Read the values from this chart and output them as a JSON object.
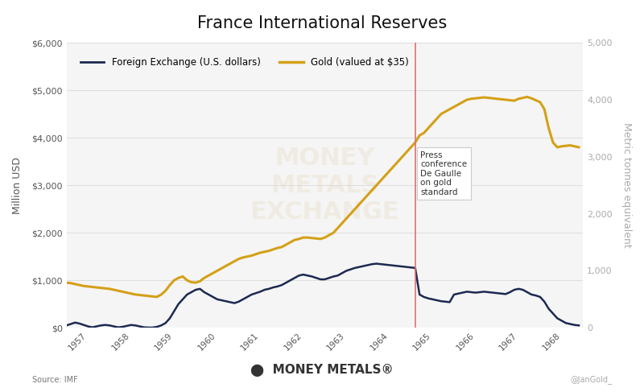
{
  "title": "France International Reserves",
  "legend_fx": "Foreign Exchange (U.S. dollars)",
  "legend_gold": "Gold (valued at $35)",
  "ylabel_left": "Million USD",
  "ylabel_right": "Metric tonnes equivalent",
  "source": "Source: IMF",
  "watermark": "@JanGold_",
  "annotation_text": "Press\nconference\nDe Gaulle\non gold\nstandard",
  "vline_x": 1965.1,
  "background_color": "#ffffff",
  "plot_bg_color": "#f5f5f5",
  "fx_color": "#1c2951",
  "gold_color": "#d4a017",
  "vline_color": "#e07070",
  "ylim_left": [
    0,
    6000
  ],
  "ylim_right": [
    0,
    5000
  ],
  "yticks_left": [
    0,
    1000,
    2000,
    3000,
    4000,
    5000,
    6000
  ],
  "yticks_right": [
    0,
    1000,
    2000,
    3000,
    4000,
    5000
  ],
  "fx_data": {
    "x": [
      1957.0,
      1957.1,
      1957.2,
      1957.3,
      1957.4,
      1957.5,
      1957.6,
      1957.7,
      1957.8,
      1957.9,
      1958.0,
      1958.1,
      1958.2,
      1958.3,
      1958.4,
      1958.5,
      1958.6,
      1958.7,
      1958.8,
      1958.9,
      1959.0,
      1959.1,
      1959.2,
      1959.3,
      1959.4,
      1959.5,
      1959.6,
      1959.7,
      1959.8,
      1959.9,
      1960.0,
      1960.1,
      1960.2,
      1960.3,
      1960.4,
      1960.5,
      1960.6,
      1960.7,
      1960.8,
      1960.9,
      1961.0,
      1961.1,
      1961.2,
      1961.3,
      1961.4,
      1961.5,
      1961.6,
      1961.7,
      1961.8,
      1961.9,
      1962.0,
      1962.1,
      1962.2,
      1962.3,
      1962.4,
      1962.5,
      1962.6,
      1962.7,
      1962.8,
      1962.9,
      1963.0,
      1963.1,
      1963.2,
      1963.3,
      1963.4,
      1963.5,
      1963.6,
      1963.7,
      1963.8,
      1963.9,
      1964.0,
      1964.1,
      1964.2,
      1964.3,
      1964.4,
      1964.5,
      1964.6,
      1964.7,
      1964.8,
      1964.9,
      1965.0,
      1965.1,
      1965.2,
      1965.3,
      1965.4,
      1965.5,
      1965.6,
      1965.7,
      1965.8,
      1965.9,
      1966.0,
      1966.1,
      1966.2,
      1966.3,
      1966.4,
      1966.5,
      1966.6,
      1966.7,
      1966.8,
      1966.9,
      1967.0,
      1967.1,
      1967.2,
      1967.3,
      1967.4,
      1967.5,
      1967.6,
      1967.7,
      1967.8,
      1967.9,
      1968.0,
      1968.1,
      1968.2,
      1968.3,
      1968.4,
      1968.5,
      1968.6,
      1968.7,
      1968.8,
      1968.9
    ],
    "y": [
      50,
      80,
      110,
      90,
      60,
      30,
      10,
      30,
      50,
      60,
      50,
      30,
      10,
      20,
      40,
      60,
      50,
      30,
      10,
      5,
      5,
      20,
      50,
      100,
      200,
      350,
      500,
      600,
      700,
      750,
      800,
      820,
      750,
      700,
      650,
      600,
      580,
      560,
      540,
      520,
      550,
      600,
      650,
      700,
      730,
      760,
      800,
      820,
      850,
      870,
      900,
      950,
      1000,
      1050,
      1100,
      1120,
      1100,
      1080,
      1050,
      1020,
      1020,
      1050,
      1080,
      1100,
      1150,
      1200,
      1230,
      1260,
      1280,
      1300,
      1320,
      1340,
      1350,
      1340,
      1330,
      1320,
      1310,
      1300,
      1290,
      1280,
      1270,
      1260,
      700,
      650,
      620,
      600,
      580,
      560,
      550,
      540,
      700,
      720,
      740,
      760,
      750,
      740,
      750,
      760,
      750,
      740,
      730,
      720,
      710,
      750,
      800,
      820,
      800,
      750,
      700,
      680,
      650,
      550,
      400,
      300,
      200,
      150,
      100,
      80,
      60,
      50
    ]
  },
  "gold_data": {
    "x": [
      1957.0,
      1957.1,
      1957.2,
      1957.3,
      1957.4,
      1957.5,
      1957.6,
      1957.7,
      1957.8,
      1957.9,
      1958.0,
      1958.1,
      1958.2,
      1958.3,
      1958.4,
      1958.5,
      1958.6,
      1958.7,
      1958.8,
      1958.9,
      1959.0,
      1959.1,
      1959.2,
      1959.3,
      1959.4,
      1959.5,
      1959.6,
      1959.7,
      1959.8,
      1959.9,
      1960.0,
      1960.1,
      1960.2,
      1960.3,
      1960.4,
      1960.5,
      1960.6,
      1960.7,
      1960.8,
      1960.9,
      1961.0,
      1961.1,
      1961.2,
      1961.3,
      1961.4,
      1961.5,
      1961.6,
      1961.7,
      1961.8,
      1961.9,
      1962.0,
      1962.1,
      1962.2,
      1962.3,
      1962.4,
      1962.5,
      1962.6,
      1962.7,
      1962.8,
      1962.9,
      1963.0,
      1963.1,
      1963.2,
      1963.3,
      1963.4,
      1963.5,
      1963.6,
      1963.7,
      1963.8,
      1963.9,
      1964.0,
      1964.1,
      1964.2,
      1964.3,
      1964.4,
      1964.5,
      1964.6,
      1964.7,
      1964.8,
      1964.9,
      1965.0,
      1965.1,
      1965.2,
      1965.3,
      1965.4,
      1965.5,
      1965.6,
      1965.7,
      1965.8,
      1965.9,
      1966.0,
      1966.1,
      1966.2,
      1966.3,
      1966.4,
      1966.5,
      1966.6,
      1966.7,
      1966.8,
      1966.9,
      1967.0,
      1967.1,
      1967.2,
      1967.3,
      1967.4,
      1967.5,
      1967.6,
      1967.7,
      1967.8,
      1967.9,
      1968.0,
      1968.1,
      1968.2,
      1968.3,
      1968.4,
      1968.5,
      1968.6,
      1968.7,
      1968.8,
      1968.9
    ],
    "y": [
      950,
      940,
      920,
      900,
      880,
      870,
      860,
      850,
      840,
      830,
      820,
      800,
      780,
      760,
      740,
      720,
      700,
      690,
      680,
      670,
      660,
      650,
      700,
      780,
      900,
      1000,
      1050,
      1080,
      1000,
      960,
      950,
      980,
      1050,
      1100,
      1150,
      1200,
      1250,
      1300,
      1350,
      1400,
      1450,
      1480,
      1500,
      1520,
      1550,
      1580,
      1600,
      1620,
      1650,
      1680,
      1700,
      1750,
      1800,
      1850,
      1870,
      1900,
      1900,
      1890,
      1880,
      1870,
      1900,
      1950,
      2000,
      2100,
      2200,
      2300,
      2400,
      2500,
      2600,
      2700,
      2800,
      2900,
      3000,
      3100,
      3200,
      3300,
      3400,
      3500,
      3600,
      3700,
      3800,
      3900,
      4050,
      4100,
      4200,
      4300,
      4400,
      4500,
      4550,
      4600,
      4650,
      4700,
      4750,
      4800,
      4820,
      4830,
      4840,
      4850,
      4840,
      4830,
      4820,
      4810,
      4800,
      4790,
      4780,
      4820,
      4840,
      4860,
      4830,
      4790,
      4750,
      4600,
      4200,
      3900,
      3800,
      3820,
      3830,
      3840,
      3820,
      3800
    ]
  }
}
